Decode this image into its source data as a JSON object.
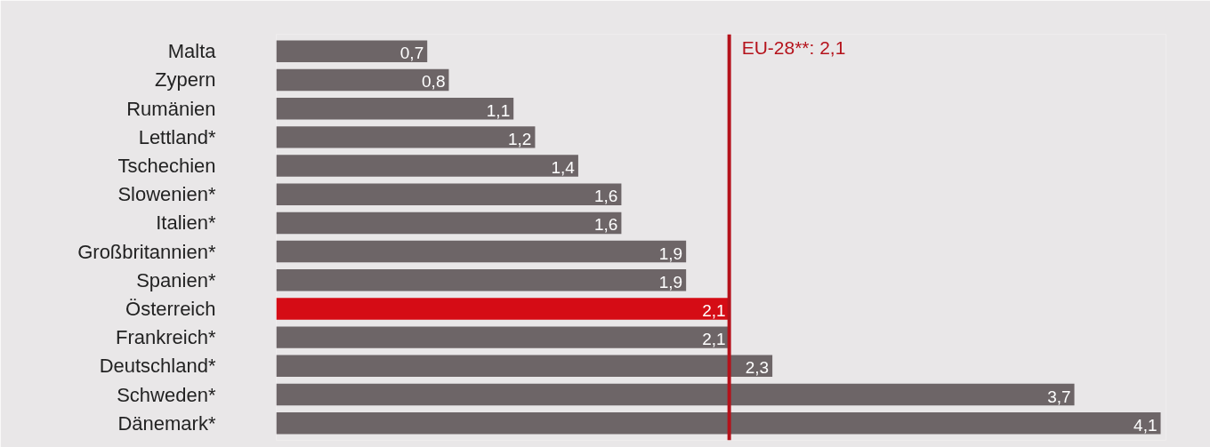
{
  "chart_data": {
    "type": "bar",
    "orientation": "horizontal",
    "categories": [
      "Malta",
      "Zypern",
      "Rumänien",
      "Lettland*",
      "Tschechien",
      "Slowenien*",
      "Italien*",
      "Großbritannien*",
      "Spanien*",
      "Österreich",
      "Frankreich*",
      "Deutschland*",
      "Schweden*",
      "Dänemark*"
    ],
    "values": [
      0.7,
      0.8,
      1.1,
      1.2,
      1.4,
      1.6,
      1.6,
      1.9,
      1.9,
      2.1,
      2.1,
      2.3,
      3.7,
      4.1
    ],
    "value_labels": [
      "0,7",
      "0,8",
      "1,1",
      "1,2",
      "1,4",
      "1,6",
      "1,6",
      "1,9",
      "1,9",
      "2,1",
      "2,1",
      "2,3",
      "3,7",
      "4,1"
    ],
    "colors": [
      "#6d6567",
      "#6d6567",
      "#6d6567",
      "#6d6567",
      "#6d6567",
      "#6d6567",
      "#6d6567",
      "#6d6567",
      "#6d6567",
      "#d50c15",
      "#6d6567",
      "#6d6567",
      "#6d6567",
      "#6d6567"
    ],
    "ref_lines": [
      {
        "axis": "x",
        "value": 2.1,
        "label": "EU-28**: 2,1",
        "color": "#b5121b"
      }
    ]
  }
}
